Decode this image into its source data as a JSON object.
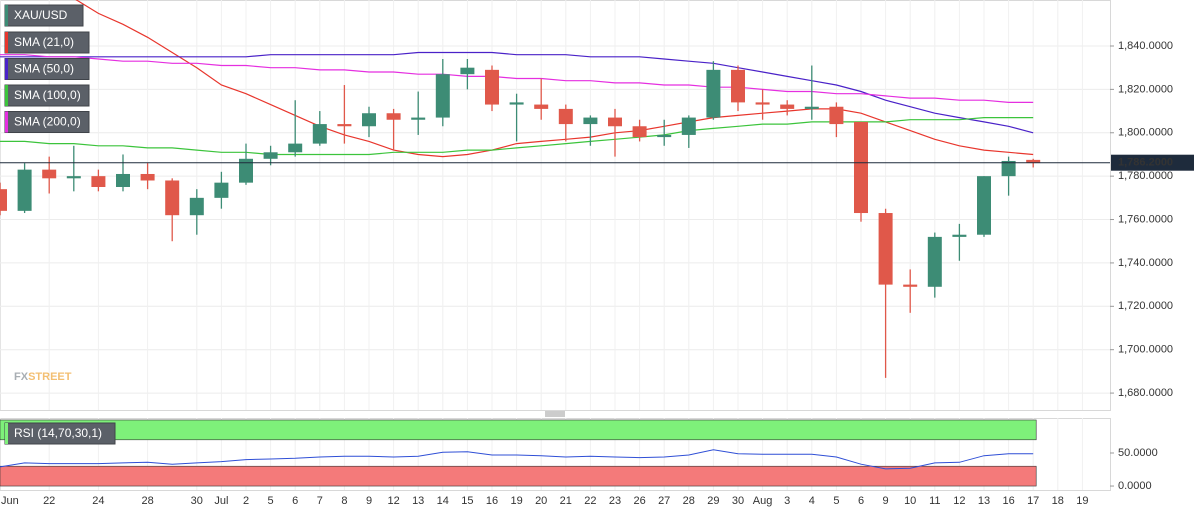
{
  "chart_data": [
    {
      "type": "candlestick",
      "watermark": [
        "FX",
        "STREET"
      ],
      "categories": [
        "Jun",
        null,
        "22",
        null,
        "24",
        null,
        "28",
        null,
        "30",
        "Jul",
        "2",
        "5",
        "6",
        "7",
        "8",
        "9",
        "12",
        "13",
        "14",
        "15",
        "16",
        "19",
        "20",
        "21",
        "22",
        "23",
        "26",
        "27",
        "28",
        "29",
        "30",
        "Aug",
        "3",
        "4",
        "5",
        "6",
        "9",
        "10",
        "11",
        "12",
        "13",
        "16",
        "17",
        "18",
        "19"
      ],
      "series": [
        {
          "name": "XAU/USD",
          "color": "#3d8c75",
          "up_color": "#3d8c75",
          "down_color": "#e0584a",
          "open": [
            1774,
            1764,
            1783,
            1779,
            1780,
            1775,
            1781,
            1778,
            1762,
            1770,
            1777,
            1788,
            1791,
            1795,
            1804,
            1803,
            1809,
            1806,
            1807,
            1827,
            1829,
            1813,
            1813,
            1811,
            1804,
            1807,
            1803,
            1798,
            1799,
            1807,
            1829,
            1814,
            1813,
            1811,
            1812,
            1805,
            1763,
            1730,
            1729,
            1752,
            1753,
            1780,
            1787.5,
            null,
            null
          ],
          "high": [
            1777,
            1786,
            1789,
            1794,
            1783,
            1790,
            1786,
            1779,
            1774,
            1782,
            1795,
            1794,
            1815,
            1810,
            1822,
            1812,
            1811,
            1819,
            1834,
            1834,
            1831,
            1818,
            1825,
            1813,
            1808,
            1811,
            1806,
            1806,
            1808,
            1833,
            1831,
            1820,
            1815,
            1831,
            1814,
            1805,
            1765,
            1737,
            1754,
            1758,
            1780,
            1789,
            1788,
            null,
            null
          ],
          "low": [
            1762,
            1763,
            1772,
            1773,
            1773,
            1773,
            1774,
            1750,
            1753,
            1765,
            1776,
            1785,
            1789,
            1794,
            1795,
            1798,
            1792,
            1799,
            1803,
            1820,
            1810,
            1796,
            1806,
            1796,
            1794,
            1789,
            1796,
            1794,
            1793,
            1806,
            1810,
            1806,
            1808,
            1806,
            1798,
            1759,
            1687,
            1717,
            1724,
            1741,
            1752,
            1771,
            1784,
            null,
            null
          ],
          "close": [
            1764,
            1783,
            1779,
            1780,
            1775,
            1781,
            1778,
            1762,
            1770,
            1777,
            1788,
            1791,
            1795,
            1804,
            1803,
            1809,
            1806,
            1807,
            1827,
            1830,
            1813,
            1814,
            1811,
            1804,
            1807,
            1803,
            1798,
            1799,
            1807,
            1829,
            1814,
            1813,
            1811,
            1812,
            1804,
            1763,
            1730,
            1729,
            1752,
            1753,
            1780,
            1787,
            1786.2,
            null,
            null
          ]
        }
      ],
      "overlays": [
        {
          "name": "SMA (21,0)",
          "color": "#e8362d",
          "values": [
            null,
            null,
            null,
            1862,
            1855,
            1850,
            1844,
            1837,
            1830,
            1822,
            1818,
            1813,
            1808,
            1803,
            1799,
            1796,
            1792,
            1790,
            1789,
            1790,
            1792,
            1795,
            1796,
            1797,
            1798,
            1800,
            1801,
            1803,
            1805,
            1807,
            1808,
            1809,
            1810,
            1811,
            1811,
            1809,
            1805,
            1801,
            1797,
            1794,
            1792,
            1791,
            1790,
            null,
            null
          ]
        },
        {
          "name": "SMA (50,0)",
          "color": "#4a22c8",
          "values": [
            1835,
            1835,
            1835,
            1835,
            1835,
            1835,
            1835,
            1835,
            1835,
            1835,
            1835,
            1836,
            1836,
            1836,
            1836,
            1836,
            1836,
            1837,
            1837,
            1837,
            1837,
            1836,
            1836,
            1836,
            1835,
            1835,
            1835,
            1834,
            1833,
            1832,
            1830,
            1828,
            1826,
            1824,
            1822,
            1819,
            1815,
            1812,
            1809,
            1807,
            1805,
            1803,
            1800,
            null,
            null
          ]
        },
        {
          "name": "SMA (100,0)",
          "color": "#3cc43c",
          "values": [
            1796,
            1796,
            1795,
            1795,
            1794,
            1794,
            1793,
            1793,
            1792,
            1791,
            1791,
            1790,
            1790,
            1790,
            1790,
            1790,
            1791,
            1791,
            1791,
            1792,
            1792,
            1793,
            1794,
            1795,
            1796,
            1797,
            1798,
            1799,
            1801,
            1802,
            1803,
            1804,
            1804,
            1805,
            1805,
            1805,
            1805,
            1806,
            1806,
            1806,
            1807,
            1807,
            1807,
            null,
            null
          ]
        },
        {
          "name": "SMA (200,0)",
          "color": "#e52fe0",
          "values": [
            1836,
            1836,
            1835,
            1835,
            1834,
            1833,
            1833,
            1832,
            1832,
            1831,
            1831,
            1830,
            1830,
            1829,
            1829,
            1828,
            1828,
            1827,
            1827,
            1826,
            1826,
            1825,
            1825,
            1824,
            1824,
            1823,
            1823,
            1822,
            1822,
            1821,
            1821,
            1820,
            1819,
            1819,
            1818,
            1818,
            1817,
            1816,
            1816,
            1815,
            1815,
            1814,
            1814,
            null,
            null
          ]
        }
      ],
      "last_price": {
        "value": 1786.2,
        "label": "1,786.2000",
        "color": "#1e2b3c"
      },
      "ylim": [
        1672.2,
        1861.2
      ],
      "yticks": [
        {
          "value": 1680,
          "label": "1,680.0000"
        },
        {
          "value": 1700,
          "label": "1,700.0000"
        },
        {
          "value": 1720,
          "label": "1,720.0000"
        },
        {
          "value": 1740,
          "label": "1,740.0000"
        },
        {
          "value": 1760,
          "label": "1,760.0000"
        },
        {
          "value": 1780,
          "label": "1,780.0000"
        },
        {
          "value": 1800,
          "label": "1,800.0000"
        },
        {
          "value": 1820,
          "label": "1,820.0000"
        },
        {
          "value": 1840,
          "label": "1,840.0000"
        }
      ],
      "grid": true
    },
    {
      "type": "line",
      "series": [
        {
          "name": "RSI (14,70,30,1)",
          "color": "#2f4fd6",
          "values": [
            29,
            35,
            34,
            34,
            34,
            35,
            36,
            33,
            35,
            37,
            40,
            41,
            42,
            44,
            45,
            45,
            44,
            45,
            51,
            52,
            47,
            47,
            46,
            44,
            45,
            44,
            43,
            44,
            47,
            55,
            49,
            48,
            48,
            48,
            44,
            33,
            26,
            27,
            35,
            36,
            46,
            49,
            49,
            null,
            null
          ]
        }
      ],
      "bands": [
        {
          "from": 70,
          "to": 100,
          "color": "#7ef07a"
        },
        {
          "from": 0,
          "to": 30,
          "color": "#f47a7a"
        }
      ],
      "ylim": [
        -6,
        103
      ],
      "yticks": [
        {
          "value": 50,
          "label": "50.0000"
        },
        {
          "value": 0,
          "label": "0.0000"
        }
      ]
    }
  ]
}
